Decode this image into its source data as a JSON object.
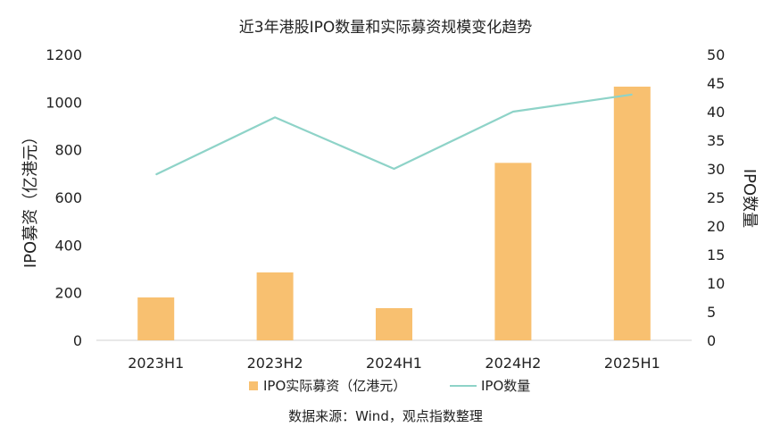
{
  "chart_data": {
    "type": "bar+line",
    "title": "近3年港股IPO数量和实际募资规模变化趋势",
    "categories": [
      "2023H1",
      "2023H2",
      "2024H1",
      "2024H2",
      "2025H1"
    ],
    "series": [
      {
        "name": "IPO实际募资（亿港元）",
        "type": "bar",
        "axis": "left",
        "color": "#F8C070",
        "values": [
          180,
          285,
          135,
          745,
          1065
        ]
      },
      {
        "name": "IPO数量",
        "type": "line",
        "axis": "right",
        "color": "#8ED3C8",
        "values": [
          29,
          39,
          30,
          40,
          43
        ]
      }
    ],
    "ylabel": "IPO募资（亿港元）",
    "y2label": "IPO数量",
    "ylim": [
      0,
      1200
    ],
    "y2lim": [
      0,
      50
    ],
    "yticks": [
      "0",
      "200",
      "400",
      "600",
      "800",
      "1000",
      "1200"
    ],
    "y2ticks": [
      "0",
      "5",
      "10",
      "15",
      "20",
      "25",
      "30",
      "35",
      "40",
      "45",
      "50"
    ],
    "grid": false,
    "legend": "bottom"
  },
  "source": "数据来源：Wind，观点指数整理"
}
